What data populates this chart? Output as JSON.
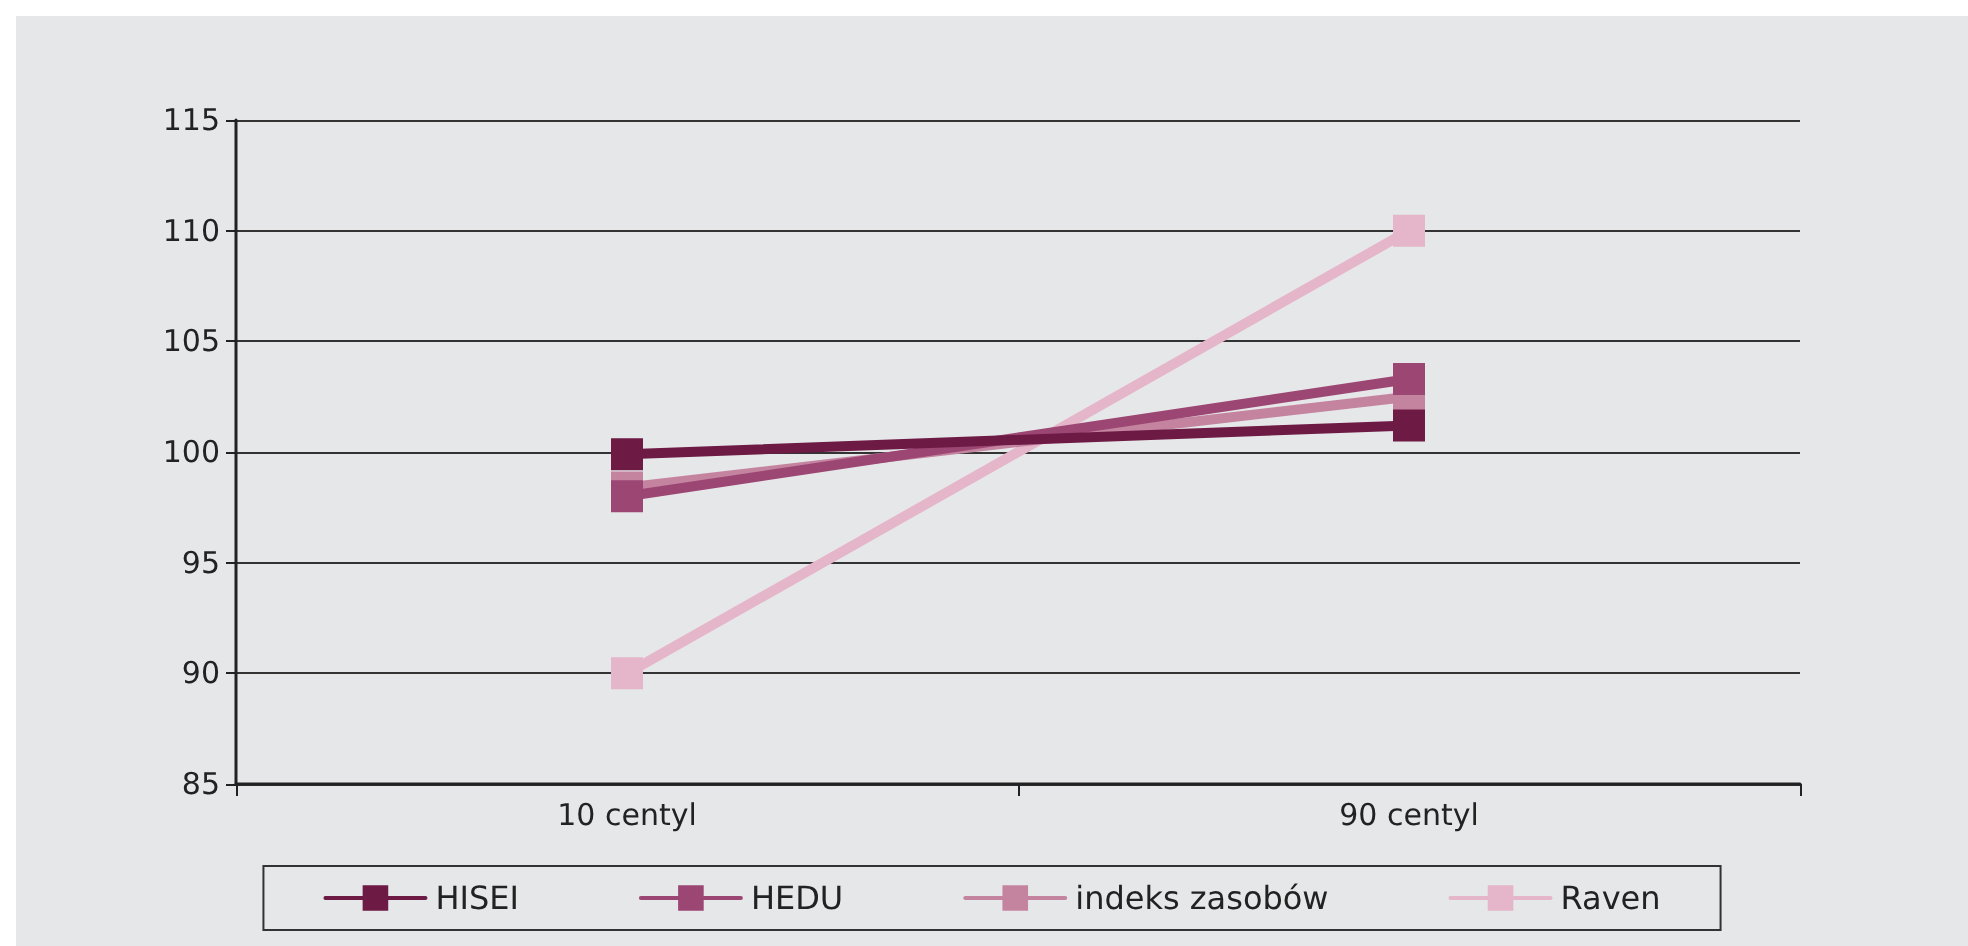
{
  "chart_data": {
    "type": "line",
    "categories": [
      "10 centyl",
      "90 centyl"
    ],
    "series": [
      {
        "name": "HISEI",
        "color": "#6d1a45",
        "values": [
          99.9,
          101.2
        ]
      },
      {
        "name": "HEDU",
        "color": "#9c4674",
        "values": [
          98.0,
          103.3
        ]
      },
      {
        "name": "indeks zasobów",
        "color": "#c4849f",
        "values": [
          98.4,
          102.5
        ]
      },
      {
        "name": "Raven",
        "color": "#e5b5c9",
        "values": [
          90,
          110
        ]
      }
    ],
    "ylim": [
      85,
      115
    ],
    "yticks": [
      85,
      90,
      95,
      100,
      105,
      110,
      115
    ],
    "grid": "y",
    "legend": "bottom",
    "marker": "square",
    "line_style": "solid"
  }
}
